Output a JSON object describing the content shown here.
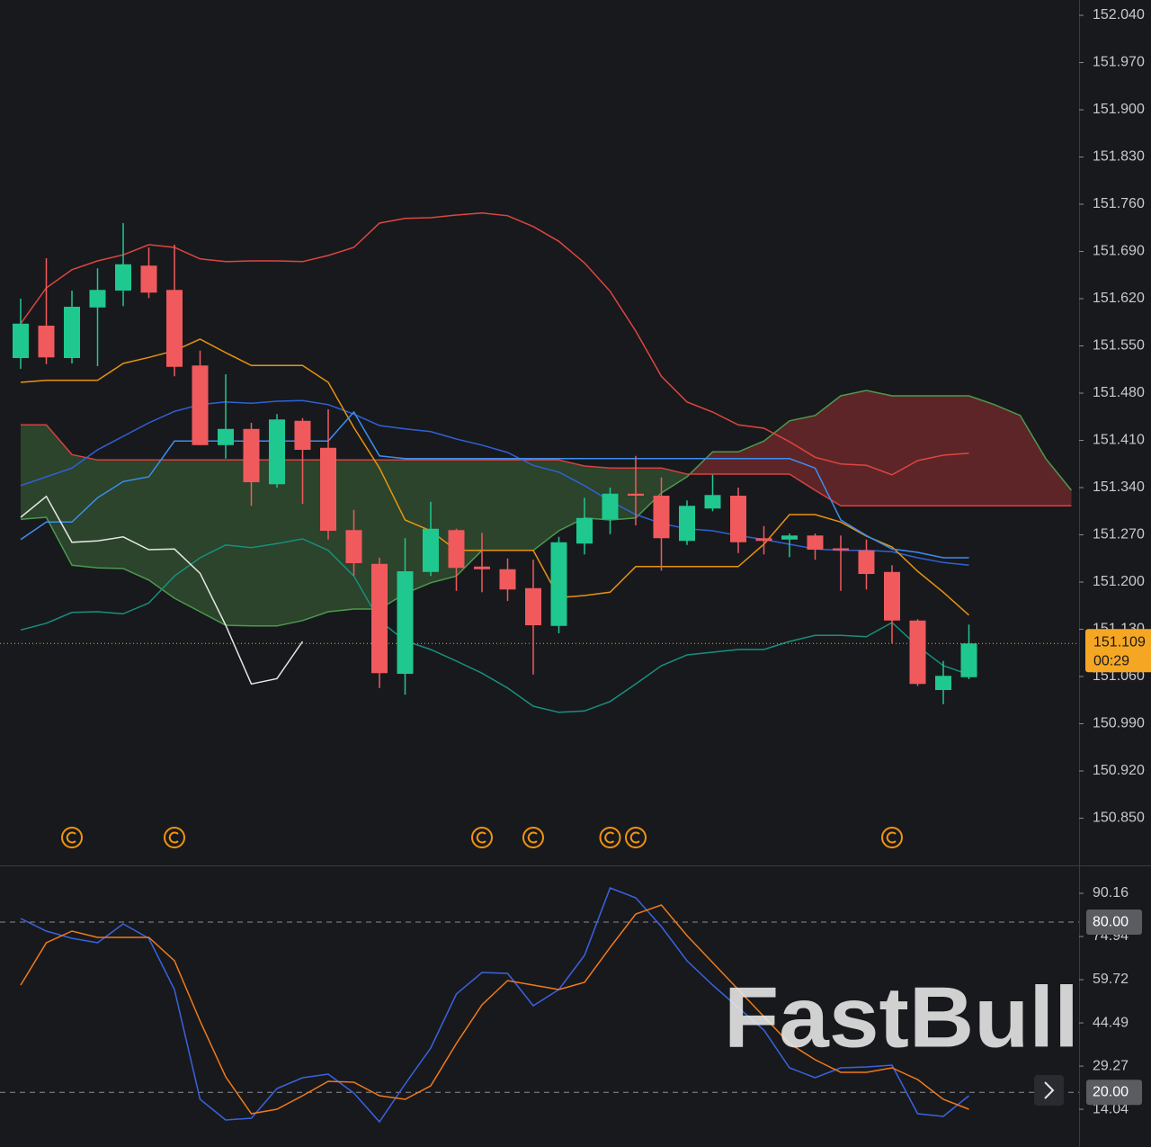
{
  "chart_data": [
    {
      "type": "candlestick",
      "open": [
        151.532,
        151.58,
        151.532,
        151.607,
        151.632,
        151.669,
        151.633,
        151.521,
        151.403,
        151.427,
        151.345,
        151.439,
        151.399,
        151.277,
        151.227,
        151.064,
        151.215,
        151.277,
        151.223,
        151.219,
        151.191,
        151.135,
        151.257,
        151.293,
        151.331,
        151.328,
        151.261,
        151.309,
        151.328,
        151.265,
        151.263,
        151.269,
        151.25,
        151.247,
        151.215,
        151.143,
        151.04,
        151.059
      ],
      "high": [
        151.62,
        151.68,
        151.632,
        151.665,
        151.732,
        151.696,
        151.7,
        151.543,
        151.508,
        151.436,
        151.449,
        151.443,
        151.456,
        151.307,
        151.236,
        151.265,
        151.319,
        151.279,
        151.273,
        151.235,
        151.233,
        151.267,
        151.325,
        151.34,
        151.387,
        151.355,
        151.321,
        151.359,
        151.34,
        151.283,
        151.272,
        151.272,
        151.269,
        151.263,
        151.225,
        151.145,
        151.083,
        151.137
      ],
      "low": [
        151.516,
        151.523,
        151.524,
        151.52,
        151.609,
        151.621,
        151.505,
        151.403,
        151.383,
        151.313,
        151.34,
        151.316,
        151.263,
        151.209,
        151.043,
        151.033,
        151.209,
        151.187,
        151.185,
        151.172,
        151.063,
        151.124,
        151.241,
        151.271,
        151.284,
        151.217,
        151.255,
        151.305,
        151.243,
        151.241,
        151.237,
        151.233,
        151.187,
        151.189,
        151.109,
        151.046,
        151.019,
        151.056
      ],
      "close": [
        151.583,
        151.533,
        151.608,
        151.633,
        151.671,
        151.629,
        151.519,
        151.403,
        151.427,
        151.348,
        151.441,
        151.396,
        151.276,
        151.228,
        151.065,
        151.216,
        151.279,
        151.221,
        151.219,
        151.189,
        151.136,
        151.259,
        151.295,
        151.331,
        151.328,
        151.265,
        151.313,
        151.329,
        151.259,
        151.261,
        151.269,
        151.248,
        151.247,
        151.212,
        151.143,
        151.049,
        151.061,
        151.109
      ],
      "up_color": "#1fc88f",
      "down_color": "#f05a5d",
      "lines": [
        {
          "color": "#e0453f",
          "values": [
            151.583,
            151.636,
            151.663,
            151.676,
            151.685,
            151.7,
            151.696,
            151.679,
            151.675,
            151.676,
            151.676,
            151.675,
            151.684,
            151.696,
            151.732,
            151.739,
            151.74,
            151.744,
            151.747,
            151.743,
            151.727,
            151.705,
            151.673,
            151.631,
            151.572,
            151.505,
            151.467,
            151.452,
            151.433,
            151.428,
            151.408,
            151.385,
            151.375,
            151.373,
            151.359,
            151.38,
            151.388,
            151.391
          ]
        },
        {
          "color": "#2f62d6",
          "values": [
            151.343,
            151.356,
            151.369,
            151.396,
            151.416,
            151.436,
            151.453,
            151.463,
            151.467,
            151.465,
            151.468,
            151.469,
            151.463,
            151.449,
            151.432,
            151.427,
            151.423,
            151.412,
            151.403,
            151.392,
            151.373,
            151.363,
            151.343,
            151.32,
            151.3,
            151.287,
            151.279,
            151.276,
            151.269,
            151.263,
            151.256,
            151.249,
            151.247,
            151.247,
            151.245,
            151.236,
            151.229,
            151.225
          ]
        },
        {
          "color": "#17907e",
          "values": [
            151.129,
            151.139,
            151.155,
            151.156,
            151.153,
            151.169,
            151.209,
            151.236,
            151.255,
            151.251,
            151.257,
            151.264,
            151.247,
            151.209,
            151.143,
            151.113,
            151.1,
            151.083,
            151.065,
            151.043,
            151.016,
            151.007,
            151.009,
            151.023,
            151.049,
            151.076,
            151.092,
            151.096,
            151.1,
            151.1,
            151.112,
            151.121,
            151.121,
            151.119,
            151.14,
            151.105,
            151.076,
            151.063
          ]
        },
        {
          "color": "#e8930e",
          "values": [
            151.496,
            151.499,
            151.499,
            151.499,
            151.524,
            151.533,
            151.543,
            151.56,
            151.54,
            151.521,
            151.521,
            151.521,
            151.496,
            151.429,
            151.369,
            151.292,
            151.276,
            151.247,
            151.247,
            151.247,
            151.247,
            151.177,
            151.18,
            151.185,
            151.223,
            151.223,
            151.223,
            151.223,
            151.223,
            151.256,
            151.3,
            151.3,
            151.289,
            151.268,
            151.252,
            151.216,
            151.185,
            151.151
          ]
        },
        {
          "color": "#3d8ef0",
          "values": [
            151.263,
            151.289,
            151.289,
            151.325,
            151.349,
            151.356,
            151.409,
            151.409,
            151.409,
            151.409,
            151.409,
            151.409,
            151.409,
            151.452,
            151.387,
            151.383,
            151.383,
            151.383,
            151.383,
            151.383,
            151.383,
            151.383,
            151.383,
            151.383,
            151.383,
            151.383,
            151.383,
            151.383,
            151.383,
            151.383,
            151.383,
            151.369,
            151.292,
            151.269,
            151.249,
            151.244,
            151.236,
            151.236
          ]
        },
        {
          "color": "#e6e6e6",
          "values": [
            151.296,
            151.327,
            151.259,
            151.261,
            151.267,
            151.248,
            151.249,
            151.213,
            151.136,
            151.049,
            151.057,
            151.112,
            null,
            null,
            null,
            null,
            null,
            null,
            null,
            null,
            null,
            null,
            null,
            null,
            null,
            null,
            null,
            null,
            null,
            null,
            null,
            null,
            null,
            null,
            null,
            null,
            null,
            null
          ]
        }
      ],
      "cloud": {
        "span_a": [
          151.293,
          151.296,
          151.225,
          151.221,
          151.22,
          151.203,
          151.176,
          151.156,
          151.136,
          151.135,
          151.135,
          151.143,
          151.156,
          151.16,
          151.16,
          151.183,
          151.199,
          151.209,
          151.247,
          151.247,
          151.247,
          151.276,
          151.295,
          151.292,
          151.295,
          151.332,
          151.356,
          151.393,
          151.393,
          151.409,
          151.439,
          151.447,
          151.476,
          151.484,
          151.476,
          151.476,
          151.476,
          151.476,
          151.463,
          151.447,
          151.383,
          151.336
        ],
        "span_b": [
          151.433,
          151.433,
          151.389,
          151.381,
          151.381,
          151.381,
          151.381,
          151.381,
          151.381,
          151.381,
          151.381,
          151.381,
          151.381,
          151.381,
          151.381,
          151.381,
          151.381,
          151.381,
          151.381,
          151.381,
          151.381,
          151.381,
          151.372,
          151.369,
          151.369,
          151.369,
          151.36,
          151.36,
          151.36,
          151.36,
          151.36,
          151.336,
          151.313,
          151.313,
          151.313,
          151.313,
          151.313,
          151.313,
          151.313,
          151.313,
          151.313,
          151.313
        ],
        "span_a_color": "#4c9a4c",
        "span_b_color": "#d9413d",
        "fill_a_above": "rgba(135,45,47,0.62)",
        "fill_b_above": "rgba(62,112,58,0.5)"
      },
      "ylim": [
        150.7827,
        152.0627
      ],
      "yticks": [
        {
          "value": 152.04,
          "label": "152.040"
        },
        {
          "value": 151.97,
          "label": "151.970"
        },
        {
          "value": 151.9,
          "label": "151.900"
        },
        {
          "value": 151.83,
          "label": "151.830"
        },
        {
          "value": 151.76,
          "label": "151.760"
        },
        {
          "value": 151.69,
          "label": "151.690"
        },
        {
          "value": 151.62,
          "label": "151.620"
        },
        {
          "value": 151.55,
          "label": "151.550"
        },
        {
          "value": 151.48,
          "label": "151.480"
        },
        {
          "value": 151.41,
          "label": "151.410"
        },
        {
          "value": 151.34,
          "label": "151.340"
        },
        {
          "value": 151.27,
          "label": "151.270"
        },
        {
          "value": 151.2,
          "label": "151.200"
        },
        {
          "value": 151.13,
          "label": "151.130"
        },
        {
          "value": 151.06,
          "label": "151.060"
        },
        {
          "value": 150.99,
          "label": "150.990"
        },
        {
          "value": 150.92,
          "label": "150.920"
        },
        {
          "value": 150.85,
          "label": "150.850"
        }
      ],
      "current_price": 151.109,
      "countdown": "00:29",
      "price_color": "#f5a623",
      "events": [
        2,
        6,
        18,
        20,
        23,
        24,
        34
      ],
      "event_color": "#f0940e"
    },
    {
      "type": "line",
      "series": [
        {
          "color": "#3a63e0",
          "values": [
            81.28,
            76.84,
            74.3,
            72.72,
            79.38,
            74.3,
            56.23,
            17.55,
            10.25,
            10.89,
            21.35,
            25.16,
            26.42,
            19.77,
            9.62,
            22.94,
            35.62,
            54.64,
            62.26,
            61.94,
            50.52,
            56.23,
            68.28,
            92.06,
            88.57,
            78.43,
            66.38,
            57.82,
            49.89,
            41.96,
            28.65,
            25.16,
            28.65,
            28.96,
            29.6,
            12.47,
            11.52,
            18.81
          ]
        },
        {
          "color": "#f07a1a",
          "values": [
            57.82,
            72.72,
            76.84,
            74.62,
            74.62,
            74.62,
            66.38,
            45.13,
            25.47,
            12.47,
            14.06,
            18.81,
            23.89,
            23.57,
            18.81,
            17.55,
            22.3,
            37.21,
            50.84,
            59.4,
            57.82,
            56.23,
            58.77,
            71.09,
            82.87,
            86.04,
            75.26,
            65.74,
            56.23,
            46.72,
            37.21,
            31.5,
            27.06,
            27.06,
            28.65,
            24.53,
            17.55,
            14.06
          ]
        }
      ],
      "ylim": [
        0.75,
        99.04
      ],
      "yticks": [
        90.16,
        74.94,
        59.72,
        44.49,
        29.27,
        14.04
      ],
      "levels": [
        {
          "value": 80,
          "label": "80.00"
        },
        {
          "value": 20,
          "label": "20.00"
        }
      ]
    }
  ],
  "watermark": "FastBull"
}
